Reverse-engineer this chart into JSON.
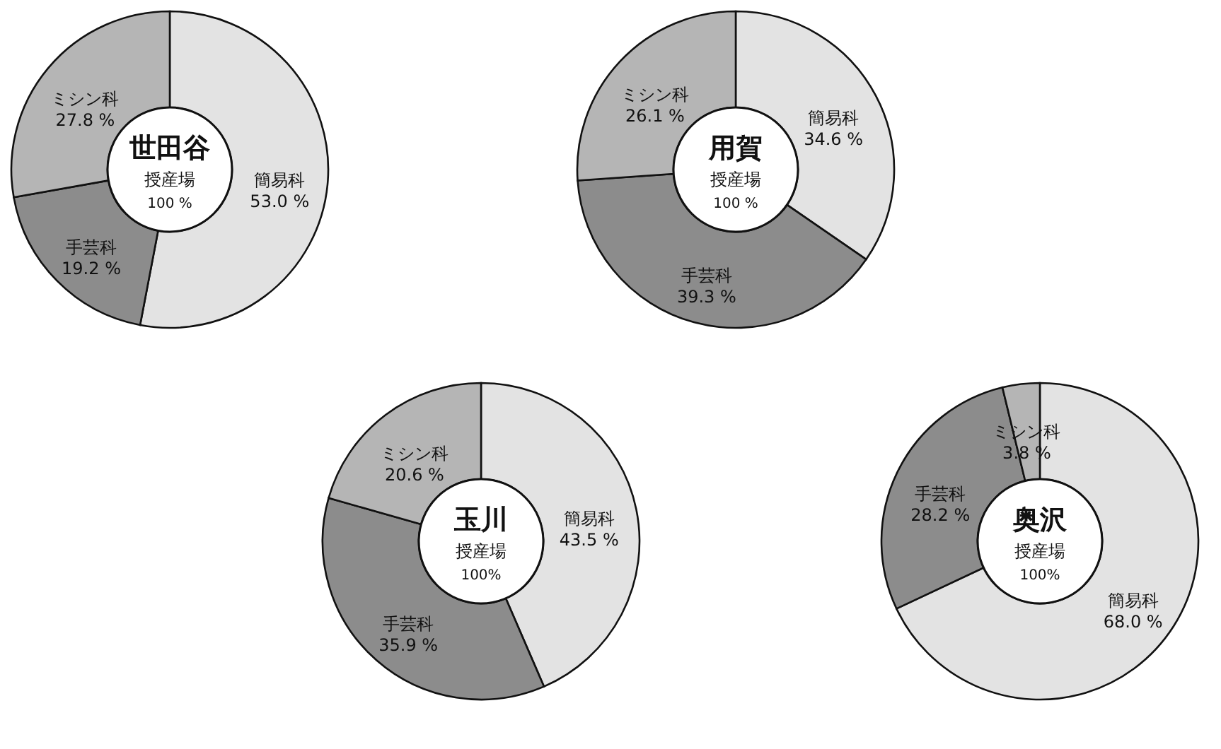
{
  "chart_data": [
    {
      "type": "donut",
      "title": "世田谷",
      "subtitle": "授産場",
      "annotations": [
        "100 %"
      ],
      "categories": [
        "簡易科",
        "手芸科",
        "ミシン科"
      ],
      "values": [
        53.0,
        19.2,
        27.8
      ],
      "colors": [
        "#e3e3e3",
        "#8c8c8c",
        "#b5b5b5"
      ],
      "value_labels": [
        "53.0 %",
        "19.2 %",
        "27.8 %"
      ]
    },
    {
      "type": "donut",
      "title": "用賀",
      "subtitle": "授産場",
      "annotations": [
        "100 %"
      ],
      "categories": [
        "簡易科",
        "手芸科",
        "ミシン科"
      ],
      "values": [
        34.6,
        39.3,
        26.1
      ],
      "colors": [
        "#e3e3e3",
        "#8c8c8c",
        "#b5b5b5"
      ],
      "value_labels": [
        "34.6 %",
        "39.3 %",
        "26.1 %"
      ]
    },
    {
      "type": "donut",
      "title": "玉川",
      "subtitle": "授産場",
      "annotations": [
        "100%"
      ],
      "categories": [
        "簡易科",
        "手芸科",
        "ミシン科"
      ],
      "values": [
        43.5,
        35.9,
        20.6
      ],
      "colors": [
        "#e3e3e3",
        "#8c8c8c",
        "#b5b5b5"
      ],
      "value_labels": [
        "43.5 %",
        "35.9 %",
        "20.6 %"
      ]
    },
    {
      "type": "donut",
      "title": "奥沢",
      "subtitle": "授産場",
      "annotations": [
        "100%"
      ],
      "categories": [
        "簡易科",
        "手芸科",
        "ミシン科"
      ],
      "values": [
        68.0,
        28.2,
        3.8
      ],
      "colors": [
        "#e3e3e3",
        "#8c8c8c",
        "#b5b5b5"
      ],
      "value_labels": [
        "68.0 %",
        "28.2 %",
        "3.8 %"
      ]
    }
  ]
}
